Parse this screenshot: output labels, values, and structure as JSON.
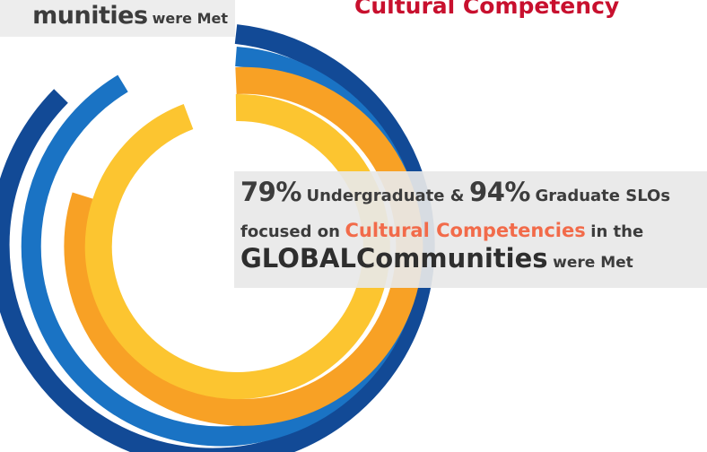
{
  "colors": {
    "ring_outer": "#124a96",
    "ring_second": "#1a73c4",
    "ring_third": "#f8a125",
    "ring_inner": "#fcc530",
    "heading": "#c8102e",
    "highlight": "#f26b4a",
    "text": "#3c3c3c"
  },
  "banner": {
    "big": "munities",
    "small": "were Met"
  },
  "heading": "Cultural Competency",
  "callout": {
    "pct_undergrad": "79%",
    "undergrad_text": "Undergraduate &",
    "pct_grad": "94%",
    "grad_text": "Graduate SLOs",
    "focused_text": "focused on",
    "highlight": "Cultural Competencies",
    "in_the": "in the",
    "global": "GLOBAL",
    "communities": "Communities",
    "were_met": "were Met"
  }
}
